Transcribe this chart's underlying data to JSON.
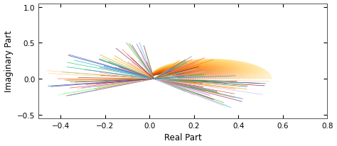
{
  "xlim": [
    -0.5,
    0.8
  ],
  "ylim": [
    -0.55,
    1.05
  ],
  "xlabel": "Real Part",
  "ylabel": "Imaginary Part",
  "xlabel_fontsize": 8.5,
  "ylabel_fontsize": 8.5,
  "tick_fontsize": 7.5,
  "xticks": [
    -0.4,
    -0.2,
    0.0,
    0.2,
    0.4,
    0.6,
    0.8
  ],
  "yticks": [
    -0.5,
    0.0,
    0.5,
    1.0
  ],
  "background_color": "#ffffff",
  "figsize": [
    4.74,
    2.07
  ],
  "dpi": 100
}
